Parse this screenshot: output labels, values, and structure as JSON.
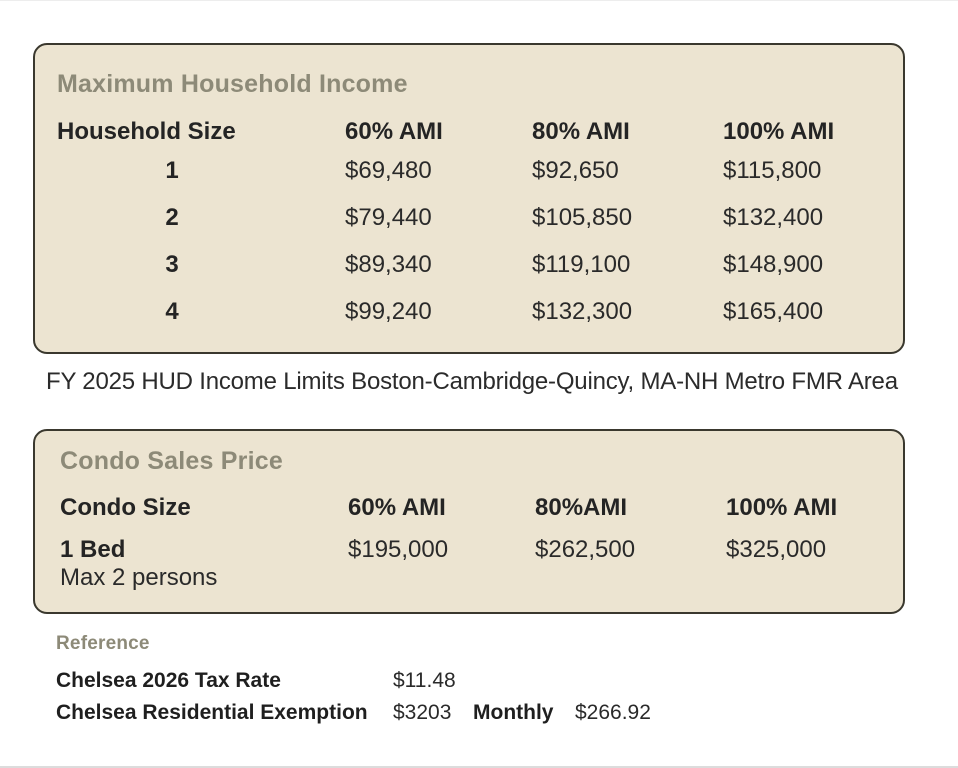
{
  "page": {
    "income_table": {
      "title": "Maximum Household Income",
      "headers": [
        "Household Size",
        "60% AMI",
        "80% AMI",
        "100% AMI"
      ],
      "rows": [
        {
          "household_size": "1",
          "ami_60": "$69,480",
          "ami_80": "$92,650",
          "ami_100": "$115,800"
        },
        {
          "household_size": "2",
          "ami_60": "$79,440",
          "ami_80": "$105,850",
          "ami_100": "$132,400"
        },
        {
          "household_size": "3",
          "ami_60": "$89,340",
          "ami_80": "$119,100",
          "ami_100": "$148,900"
        },
        {
          "household_size": "4",
          "ami_60": "$99,240",
          "ami_80": "$132,300",
          "ami_100": "$165,400"
        }
      ]
    },
    "income_caption": "FY 2025 HUD Income Limits Boston-Cambridge-Quincy, MA-NH Metro FMR Area",
    "condo_table": {
      "title": "Condo Sales Price",
      "headers": [
        "Condo Size",
        "60% AMI",
        "80%AMI",
        "100% AMI"
      ],
      "rows": [
        {
          "condo_size": "1 Bed",
          "note": "Max 2 persons",
          "ami_60": "$195,000",
          "ami_80": "$262,500",
          "ami_100": "$325,000"
        }
      ]
    },
    "reference": {
      "title": "Reference",
      "rows": [
        {
          "label": "Chelsea 2026 Tax Rate",
          "value": "$11.48",
          "label2": "",
          "value2": ""
        },
        {
          "label": "Chelsea Residential Exemption",
          "value": "$3203",
          "label2": "Monthly",
          "value2": "$266.92"
        }
      ]
    },
    "colors": {
      "panel_background": "#ece4d1",
      "panel_border": "#3a382e",
      "section_title": "#8d8a78",
      "text": "#242424"
    }
  }
}
